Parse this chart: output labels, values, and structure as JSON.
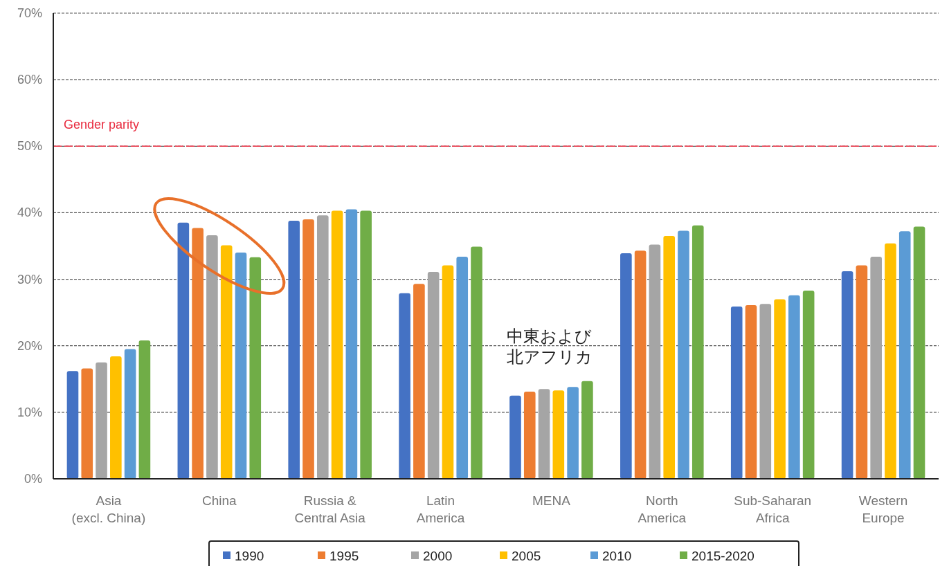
{
  "chart_data": {
    "type": "bar",
    "categories": [
      "Asia\n(excl. China)",
      "China",
      "Russia &\nCentral Asia",
      "Latin\nAmerica",
      "MENA",
      "North\nAmerica",
      "Sub-Saharan\nAfrica",
      "Western\nEurope"
    ],
    "series": [
      {
        "name": "1990",
        "color": "#4472c4",
        "values": [
          16.2,
          38.5,
          38.8,
          27.9,
          12.5,
          33.9,
          25.9,
          31.2
        ]
      },
      {
        "name": "1995",
        "color": "#ed7d31",
        "values": [
          16.6,
          37.7,
          39.0,
          29.3,
          13.1,
          34.3,
          26.1,
          32.1
        ]
      },
      {
        "name": "2000",
        "color": "#a5a5a5",
        "values": [
          17.5,
          36.6,
          39.6,
          31.1,
          13.5,
          35.2,
          26.3,
          33.4
        ]
      },
      {
        "name": "2005",
        "color": "#ffc000",
        "values": [
          18.4,
          35.1,
          40.3,
          32.1,
          13.3,
          36.5,
          27.0,
          35.4
        ]
      },
      {
        "name": "2010",
        "color": "#5b9bd5",
        "values": [
          19.5,
          34.0,
          40.5,
          33.4,
          13.8,
          37.3,
          27.6,
          37.2
        ]
      },
      {
        "name": "2015-2020",
        "color": "#70ad47",
        "values": [
          20.8,
          33.3,
          40.3,
          34.9,
          14.7,
          38.1,
          28.3,
          37.9
        ]
      }
    ],
    "ylim": [
      0,
      70
    ],
    "yticks": [
      {
        "value": 0,
        "label": "0%"
      },
      {
        "value": 10,
        "label": "10%"
      },
      {
        "value": 20,
        "label": "20%"
      },
      {
        "value": 30,
        "label": "30%"
      },
      {
        "value": 40,
        "label": "40%"
      },
      {
        "value": 50,
        "label": "50%"
      },
      {
        "value": 60,
        "label": "60%"
      },
      {
        "value": 70,
        "label": "70%"
      }
    ],
    "grid": "y",
    "legend": "bottom",
    "ref_lines": [
      {
        "axis": "y",
        "value": 50,
        "label": "Gender parity",
        "color": "#e8283c",
        "line_style": "dashed"
      }
    ],
    "annotations": [
      "中東および北アフリカ"
    ]
  }
}
